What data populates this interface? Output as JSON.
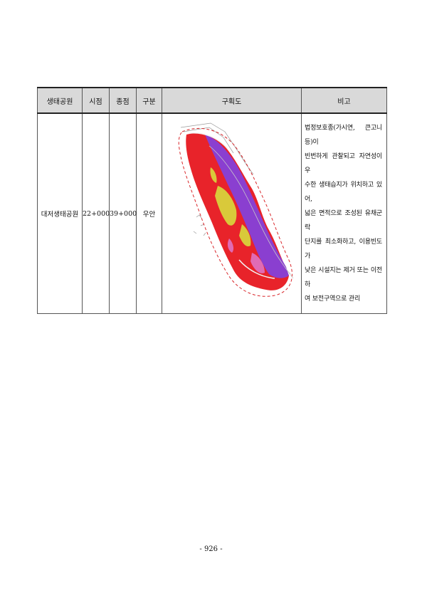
{
  "table": {
    "headers": [
      "생태공원",
      "시점",
      "종점",
      "구분",
      "구획도",
      "비고"
    ],
    "row": {
      "park": "대저생태공원",
      "start": "22+000",
      "end": "39+000",
      "side": "우안",
      "note_lines": [
        "법정보호종(가시연, 큰고니 등)이",
        "빈번하게 관찰되고 자연성이 우",
        "수한 생태습지가 위치하고 있어,",
        "넓은 면적으로 조성된 유채군락",
        "단지를 최소화하고, 이용빈도가",
        "낮은 시설지는 제거 또는 이전하",
        "여 보전구역으로 관리"
      ]
    }
  },
  "colors": {
    "header_bg": "#d9d9d9",
    "zone_red": "#e8232a",
    "zone_purple": "#8a3fd0",
    "zone_yellow": "#d9c93a",
    "zone_pink": "#e06bb4",
    "boundary_dash": "#d9262a"
  },
  "page_number": "- 926 -"
}
